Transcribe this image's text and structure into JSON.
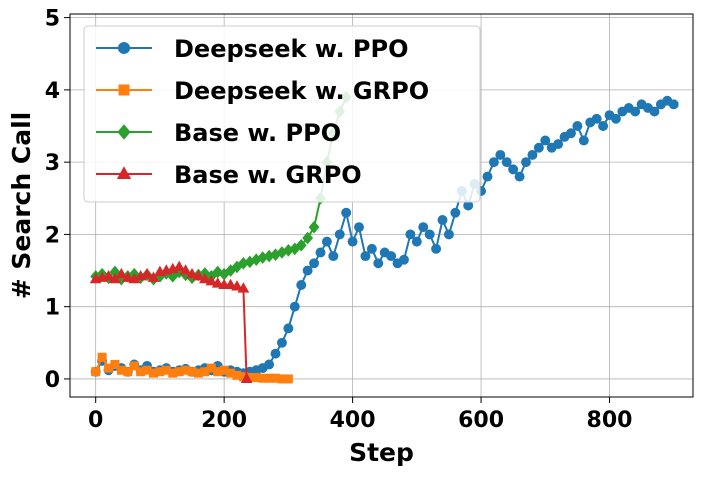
{
  "chart_data": {
    "type": "line",
    "xlabel": "Step",
    "ylabel": "# Search Call",
    "xlim": [
      -40,
      930
    ],
    "ylim": [
      -0.25,
      5.05
    ],
    "xticks": [
      0,
      200,
      400,
      600,
      800
    ],
    "yticks": [
      0,
      1,
      2,
      3,
      4,
      5
    ],
    "grid": true,
    "legend_position": "top-left",
    "series": [
      {
        "name": "Deepseek w. PPO",
        "color": "#1f77b4",
        "marker": "circle",
        "x": [
          0,
          10,
          20,
          30,
          40,
          50,
          60,
          70,
          80,
          90,
          100,
          110,
          120,
          130,
          140,
          150,
          160,
          170,
          180,
          190,
          200,
          210,
          220,
          230,
          240,
          250,
          260,
          270,
          280,
          290,
          300,
          310,
          320,
          330,
          340,
          350,
          360,
          370,
          380,
          390,
          400,
          410,
          420,
          430,
          440,
          450,
          460,
          470,
          480,
          490,
          500,
          510,
          520,
          530,
          540,
          550,
          560,
          570,
          580,
          590,
          600,
          610,
          620,
          630,
          640,
          650,
          660,
          670,
          680,
          690,
          700,
          710,
          720,
          730,
          740,
          750,
          760,
          770,
          780,
          790,
          800,
          810,
          820,
          830,
          840,
          850,
          860,
          870,
          880,
          890,
          900
        ],
        "y": [
          0.1,
          0.25,
          0.12,
          0.18,
          0.15,
          0.1,
          0.2,
          0.12,
          0.18,
          0.1,
          0.12,
          0.15,
          0.1,
          0.12,
          0.14,
          0.1,
          0.12,
          0.15,
          0.12,
          0.18,
          0.1,
          0.12,
          0.1,
          0.08,
          0.1,
          0.12,
          0.15,
          0.2,
          0.35,
          0.5,
          0.7,
          1.0,
          1.3,
          1.5,
          1.6,
          1.75,
          1.9,
          1.7,
          2.0,
          2.3,
          1.9,
          2.1,
          1.7,
          1.8,
          1.6,
          1.75,
          1.7,
          1.6,
          1.65,
          2.0,
          1.9,
          2.1,
          2.0,
          1.8,
          2.2,
          2.0,
          2.3,
          2.6,
          2.4,
          2.7,
          2.6,
          2.8,
          3.0,
          3.1,
          3.0,
          2.9,
          2.8,
          3.0,
          3.1,
          3.2,
          3.3,
          3.2,
          3.25,
          3.35,
          3.4,
          3.5,
          3.3,
          3.55,
          3.6,
          3.5,
          3.65,
          3.6,
          3.7,
          3.75,
          3.7,
          3.8,
          3.75,
          3.7,
          3.8,
          3.85,
          3.8
        ]
      },
      {
        "name": "Deepseek w. GRPO",
        "color": "#ff7f0e",
        "marker": "square",
        "x": [
          0,
          10,
          20,
          30,
          40,
          50,
          60,
          70,
          80,
          90,
          100,
          110,
          120,
          130,
          140,
          150,
          160,
          170,
          180,
          190,
          200,
          210,
          220,
          230,
          240,
          250,
          260,
          270,
          280,
          290,
          300
        ],
        "y": [
          0.1,
          0.3,
          0.15,
          0.2,
          0.12,
          0.1,
          0.18,
          0.1,
          0.12,
          0.08,
          0.1,
          0.12,
          0.08,
          0.1,
          0.12,
          0.1,
          0.08,
          0.1,
          0.15,
          0.1,
          0.12,
          0.08,
          0.05,
          0.03,
          0.02,
          0.02,
          0.01,
          0.01,
          0.01,
          0.0,
          0.0
        ]
      },
      {
        "name": "Base w. PPO",
        "color": "#2ca02c",
        "marker": "diamond",
        "x": [
          0,
          10,
          20,
          30,
          40,
          50,
          60,
          70,
          80,
          90,
          100,
          110,
          120,
          130,
          140,
          150,
          160,
          170,
          180,
          190,
          200,
          210,
          220,
          230,
          240,
          250,
          260,
          270,
          280,
          290,
          300,
          310,
          320,
          330,
          340,
          350,
          360,
          370,
          380,
          390
        ],
        "y": [
          1.42,
          1.45,
          1.4,
          1.48,
          1.38,
          1.42,
          1.45,
          1.4,
          1.44,
          1.38,
          1.42,
          1.46,
          1.42,
          1.48,
          1.44,
          1.4,
          1.44,
          1.46,
          1.42,
          1.48,
          1.45,
          1.5,
          1.55,
          1.6,
          1.62,
          1.65,
          1.68,
          1.7,
          1.72,
          1.75,
          1.78,
          1.8,
          1.85,
          1.95,
          2.1,
          2.5,
          3.0,
          3.4,
          3.7,
          3.9
        ]
      },
      {
        "name": "Base w. GRPO",
        "color": "#d62728",
        "marker": "triangle",
        "x": [
          0,
          10,
          20,
          30,
          40,
          50,
          60,
          70,
          80,
          90,
          100,
          110,
          120,
          130,
          140,
          150,
          160,
          170,
          180,
          190,
          200,
          210,
          220,
          230,
          235
        ],
        "y": [
          1.38,
          1.4,
          1.42,
          1.38,
          1.45,
          1.4,
          1.38,
          1.42,
          1.45,
          1.4,
          1.48,
          1.5,
          1.52,
          1.55,
          1.5,
          1.45,
          1.42,
          1.38,
          1.35,
          1.32,
          1.3,
          1.3,
          1.28,
          1.25,
          0.0
        ]
      }
    ]
  }
}
